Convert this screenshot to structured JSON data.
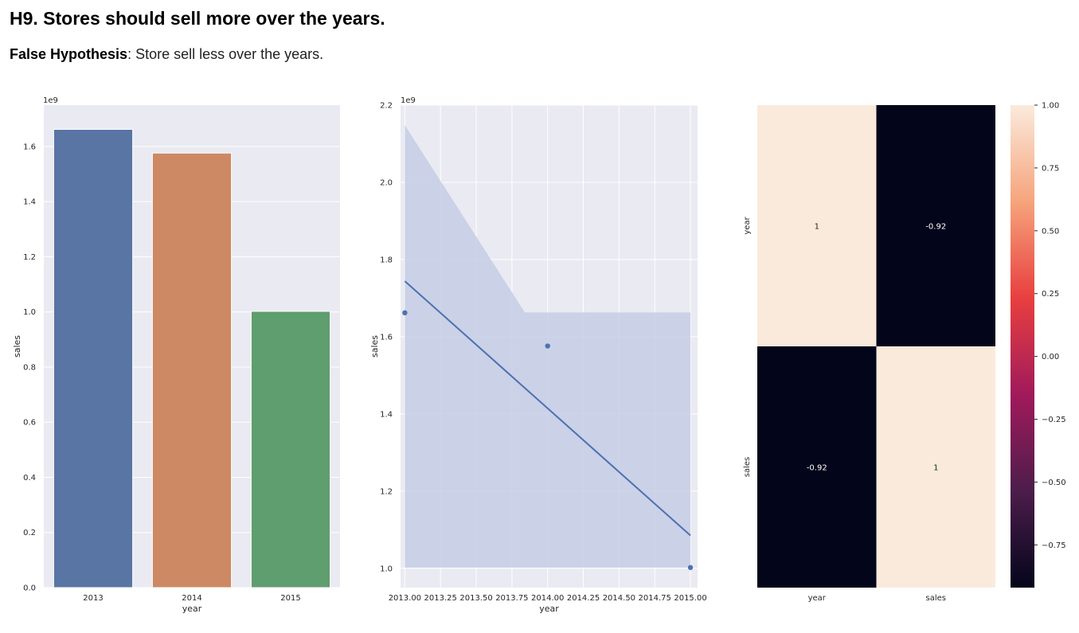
{
  "header": {
    "title": "H9. Stores should sell more over the years.",
    "subtitle_bold": "False Hypothesis",
    "subtitle_rest": ": Store sell less over the years."
  },
  "chart_data": [
    {
      "type": "bar",
      "categories": [
        "2013",
        "2014",
        "2015"
      ],
      "values": [
        1.662,
        1.576,
        1.002
      ],
      "colors": [
        "#5975a4",
        "#cc8963",
        "#5f9e6e"
      ],
      "xlabel": "year",
      "ylabel": "sales",
      "offset_label": "1e9",
      "ylim": [
        0,
        1.75
      ],
      "yticks": [
        0.0,
        0.2,
        0.4,
        0.6,
        0.8,
        1.0,
        1.2,
        1.4,
        1.6
      ],
      "ytick_labels": [
        "0.0",
        "0.2",
        "0.4",
        "0.6",
        "0.8",
        "1.0",
        "1.2",
        "1.4",
        "1.6"
      ],
      "background": "#eaeaf2",
      "grid": true
    },
    {
      "type": "scatter",
      "x": [
        2013,
        2014,
        2015
      ],
      "y": [
        1.662,
        1.576,
        1.002
      ],
      "regression_line": {
        "x": [
          2013,
          2015
        ],
        "y": [
          1.744,
          1.085
        ]
      },
      "confidence_band": {
        "upper": [
          [
            2013,
            2.148
          ],
          [
            2013.84,
            1.663
          ],
          [
            2015,
            1.663
          ]
        ],
        "lower": [
          [
            2013,
            1.002
          ],
          [
            2015,
            1.002
          ]
        ]
      },
      "xlabel": "year",
      "ylabel": "sales",
      "offset_label": "1e9",
      "xlim": [
        2012.97,
        2015.05
      ],
      "ylim": [
        0.95,
        2.2
      ],
      "xticks": [
        2013.0,
        2013.25,
        2013.5,
        2013.75,
        2014.0,
        2014.25,
        2014.5,
        2014.75,
        2015.0
      ],
      "xtick_labels": [
        "2013.00",
        "2013.25",
        "2013.50",
        "2013.75",
        "2014.00",
        "2014.25",
        "2014.50",
        "2014.75",
        "2015.00"
      ],
      "yticks": [
        1.0,
        1.2,
        1.4,
        1.6,
        1.8,
        2.0,
        2.2
      ],
      "ytick_labels": [
        "1.0",
        "1.2",
        "1.4",
        "1.6",
        "1.8",
        "2.0",
        "2.2"
      ],
      "color": "#4c72b0",
      "band_color": "#c5cde5",
      "background": "#eaeaf2",
      "grid": true
    },
    {
      "type": "heatmap",
      "x_categories": [
        "year",
        "sales"
      ],
      "y_categories": [
        "year",
        "sales"
      ],
      "values": [
        [
          1,
          -0.92
        ],
        [
          -0.92,
          1
        ]
      ],
      "annotations": [
        [
          "1",
          "-0.92"
        ],
        [
          "-0.92",
          "1"
        ]
      ],
      "colors": [
        [
          "#faeadc",
          "#03051a"
        ],
        [
          "#03051a",
          "#faeadc"
        ]
      ],
      "colorbar": {
        "range": [
          -0.92,
          1.0
        ],
        "ticks": [
          1.0,
          0.75,
          0.5,
          0.25,
          0.0,
          -0.25,
          -0.5,
          -0.75
        ],
        "tick_labels": [
          "1.00",
          "0.75",
          "0.50",
          "0.25",
          "0.00",
          "−0.25",
          "−0.50",
          "−0.75"
        ],
        "stops": [
          "#03051a",
          "#4c1d4b",
          "#a11a5b",
          "#e83f3f",
          "#f6a47c",
          "#faeadc"
        ]
      }
    }
  ]
}
